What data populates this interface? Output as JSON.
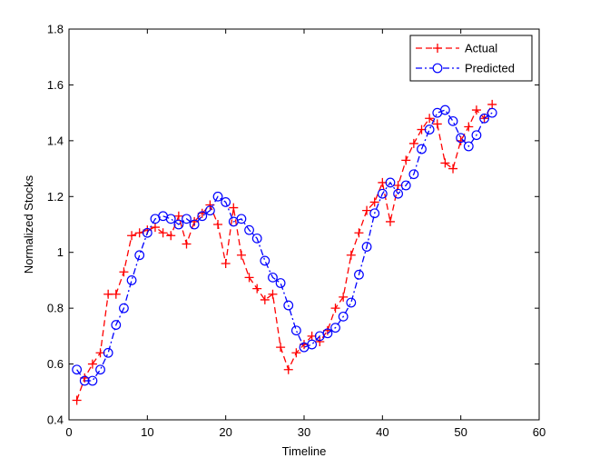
{
  "chart_data": {
    "type": "line",
    "title": "",
    "xlabel": "Timeline",
    "ylabel": "Normalized Stocks",
    "xlim": [
      0,
      60
    ],
    "ylim": [
      0.4,
      1.8
    ],
    "xticks": [
      0,
      10,
      20,
      30,
      40,
      50,
      60
    ],
    "yticks": [
      0.4,
      0.6,
      0.8,
      1.0,
      1.2,
      1.4,
      1.6,
      1.8
    ],
    "xtick_labels": [
      "0",
      "10",
      "20",
      "30",
      "40",
      "50",
      "60"
    ],
    "ytick_labels": [
      "0.4",
      "0.6",
      "0.8",
      "1",
      "1.2",
      "1.4",
      "1.6",
      "1.8"
    ],
    "grid": false,
    "legend_position": "top-right",
    "series": [
      {
        "name": "Actual",
        "color": "#ff0000",
        "line_style": "dashed",
        "marker": "plus",
        "x": [
          1,
          2,
          3,
          4,
          5,
          6,
          7,
          8,
          9,
          10,
          11,
          12,
          13,
          14,
          15,
          16,
          17,
          18,
          19,
          20,
          21,
          22,
          23,
          24,
          25,
          26,
          27,
          28,
          29,
          30,
          31,
          32,
          33,
          34,
          35,
          36,
          37,
          38,
          39,
          40,
          41,
          42,
          43,
          44,
          45,
          46,
          47,
          48,
          49,
          50,
          51,
          52,
          53,
          54
        ],
        "y": [
          0.47,
          0.55,
          0.6,
          0.64,
          0.85,
          0.85,
          0.93,
          1.06,
          1.07,
          1.08,
          1.09,
          1.07,
          1.06,
          1.13,
          1.03,
          1.11,
          1.14,
          1.17,
          1.1,
          0.96,
          1.16,
          0.99,
          0.91,
          0.87,
          0.83,
          0.85,
          0.66,
          0.58,
          0.64,
          0.67,
          0.7,
          0.68,
          0.72,
          0.8,
          0.84,
          0.99,
          1.07,
          1.15,
          1.18,
          1.25,
          1.11,
          1.24,
          1.33,
          1.39,
          1.44,
          1.48,
          1.46,
          1.32,
          1.3,
          1.4,
          1.45,
          1.51,
          1.48,
          1.53
        ]
      },
      {
        "name": "Predicted",
        "color": "#0000ff",
        "line_style": "dashdot",
        "marker": "circle",
        "x": [
          1,
          2,
          3,
          4,
          5,
          6,
          7,
          8,
          9,
          10,
          11,
          12,
          13,
          14,
          15,
          16,
          17,
          18,
          19,
          20,
          21,
          22,
          23,
          24,
          25,
          26,
          27,
          28,
          29,
          30,
          31,
          32,
          33,
          34,
          35,
          36,
          37,
          38,
          39,
          40,
          41,
          42,
          43,
          44,
          45,
          46,
          47,
          48,
          49,
          50,
          51,
          52,
          53,
          54
        ],
        "y": [
          0.58,
          0.54,
          0.54,
          0.58,
          0.64,
          0.74,
          0.8,
          0.9,
          0.99,
          1.07,
          1.12,
          1.13,
          1.12,
          1.1,
          1.12,
          1.1,
          1.13,
          1.15,
          1.2,
          1.18,
          1.11,
          1.12,
          1.08,
          1.05,
          0.97,
          0.91,
          0.89,
          0.81,
          0.72,
          0.66,
          0.67,
          0.7,
          0.71,
          0.73,
          0.77,
          0.82,
          0.92,
          1.02,
          1.14,
          1.21,
          1.25,
          1.21,
          1.24,
          1.28,
          1.37,
          1.44,
          1.5,
          1.51,
          1.47,
          1.41,
          1.38,
          1.42,
          1.48,
          1.5
        ]
      }
    ]
  }
}
